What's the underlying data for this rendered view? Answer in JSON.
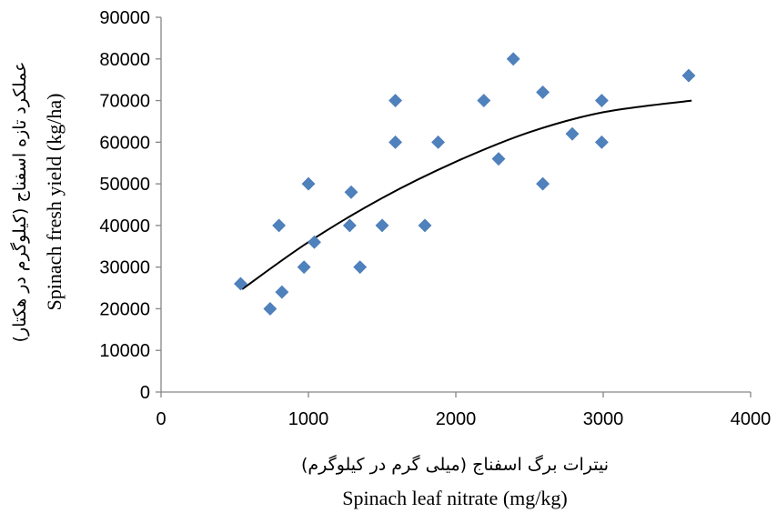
{
  "chart_data": {
    "type": "scatter",
    "title": "",
    "xlabel": "Spinach leaf nitrate (mg/kg)",
    "xlabel_fa": "نیترات برگ اسفناج (میلی گرم در کیلوگرم)",
    "ylabel": "Spinach fresh yield (kg/ha)",
    "ylabel_fa": "عملکرد تازه اسفناج (کیلوگرم در هکتار)",
    "xlim": [
      0,
      4000
    ],
    "ylim": [
      0,
      90000
    ],
    "x_ticks": [
      "0",
      "1000",
      "2000",
      "3000",
      "4000"
    ],
    "y_ticks": [
      "0",
      "10000",
      "20000",
      "30000",
      "40000",
      "50000",
      "60000",
      "70000",
      "80000",
      "90000"
    ],
    "grid": false,
    "legend": "none",
    "marker_color": "#4F81BD",
    "trendline_color": "#000000",
    "points": [
      {
        "x": 540,
        "y": 26000
      },
      {
        "x": 740,
        "y": 20000
      },
      {
        "x": 800,
        "y": 40000
      },
      {
        "x": 820,
        "y": 24000
      },
      {
        "x": 970,
        "y": 30000
      },
      {
        "x": 1000,
        "y": 50000
      },
      {
        "x": 1040,
        "y": 36000
      },
      {
        "x": 1280,
        "y": 40000
      },
      {
        "x": 1290,
        "y": 48000
      },
      {
        "x": 1350,
        "y": 30000
      },
      {
        "x": 1500,
        "y": 40000
      },
      {
        "x": 1590,
        "y": 60000
      },
      {
        "x": 1590,
        "y": 70000
      },
      {
        "x": 1790,
        "y": 40000
      },
      {
        "x": 1880,
        "y": 60000
      },
      {
        "x": 2190,
        "y": 70000
      },
      {
        "x": 2290,
        "y": 56000
      },
      {
        "x": 2390,
        "y": 80000
      },
      {
        "x": 2590,
        "y": 50000
      },
      {
        "x": 2590,
        "y": 72000
      },
      {
        "x": 2790,
        "y": 62000
      },
      {
        "x": 2990,
        "y": 60000
      },
      {
        "x": 2990,
        "y": 70000
      },
      {
        "x": 3580,
        "y": 76000
      }
    ],
    "trendline": {
      "type": "polynomial",
      "x_range": [
        550,
        3600
      ],
      "points": [
        {
          "x": 550,
          "y": 24700
        },
        {
          "x": 1000,
          "y": 36000
        },
        {
          "x": 1500,
          "y": 46600
        },
        {
          "x": 2000,
          "y": 55300
        },
        {
          "x": 2500,
          "y": 62400
        },
        {
          "x": 3000,
          "y": 67200
        },
        {
          "x": 3600,
          "y": 70000
        }
      ]
    }
  }
}
